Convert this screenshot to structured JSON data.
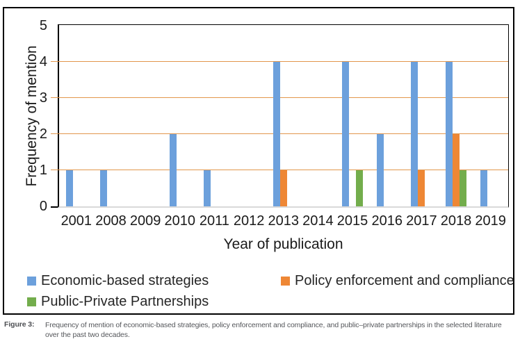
{
  "figure": {
    "caption_label": "Figure 3:",
    "caption_text": "Frequency of mention of economic-based strategies, policy enforcement and compliance, and public–private partnerships in the selected literature over the past two decades."
  },
  "chart_data": {
    "type": "bar",
    "title": "",
    "xlabel": "Year of publication",
    "ylabel": "Frequency of mention",
    "categories": [
      "2001",
      "2008",
      "2009",
      "2010",
      "2011",
      "2012",
      "2013",
      "2014",
      "2015",
      "2016",
      "2017",
      "2018",
      "2019"
    ],
    "series": [
      {
        "name": "Economic-based strategies",
        "color": "#6CA0DC",
        "values": [
          1,
          1,
          0,
          2,
          1,
          0,
          4,
          0,
          4,
          2,
          4,
          4,
          1
        ]
      },
      {
        "name": "Policy enforcement and compliance",
        "color": "#EE8735",
        "values": [
          0,
          0,
          0,
          0,
          0,
          0,
          1,
          0,
          0,
          0,
          1,
          2,
          0
        ]
      },
      {
        "name": "Public-Private Partnerships",
        "color": "#73AD4C",
        "values": [
          0,
          0,
          0,
          0,
          0,
          0,
          0,
          0,
          1,
          0,
          0,
          1,
          0
        ]
      }
    ],
    "ylim": [
      0,
      5
    ],
    "yticks": [
      0,
      1,
      2,
      3,
      4,
      5
    ],
    "grid": true,
    "legend_position": "bottom-left",
    "colors": {
      "gridline": "#E2964B",
      "plot_border": "#000000",
      "baseline": "#D9D9D9",
      "text": "#1A1A1A",
      "caption_text": "#55575B"
    }
  }
}
